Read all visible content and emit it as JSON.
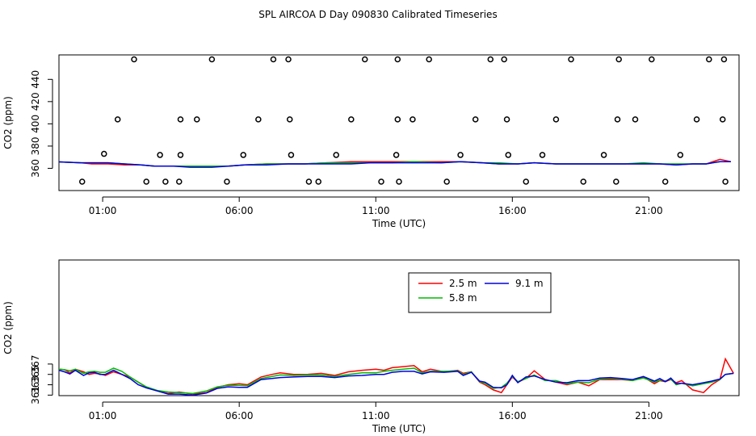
{
  "page": {
    "title": "SPL AIRCOA D  Day 090830  Calibrated Timeseries"
  },
  "chart_data": [
    {
      "type": "scatter",
      "xlabel": "Time (UTC)",
      "ylabel": "CO2 (ppm)",
      "xlim": [
        -0.6,
        24.3
      ],
      "ylim": [
        340,
        462
      ],
      "xticks": [
        1,
        6,
        11,
        16,
        21
      ],
      "xtick_labels": [
        "01:00",
        "06:00",
        "11:00",
        "16:00",
        "21:00"
      ],
      "yticks": [
        360,
        380,
        400,
        420,
        440
      ],
      "ytick_labels": [
        "360",
        "380",
        "400",
        "420",
        "440"
      ],
      "points": {
        "x": [
          0.25,
          1.05,
          1.55,
          2.15,
          2.6,
          3.1,
          3.3,
          3.8,
          3.85,
          3.85,
          4.45,
          5.0,
          5.55,
          6.15,
          6.7,
          7.25,
          7.8,
          7.85,
          7.9,
          8.55,
          8.9,
          9.55,
          10.1,
          10.6,
          11.2,
          11.75,
          11.8,
          11.8,
          11.85,
          12.35,
          12.95,
          13.6,
          14.1,
          14.65,
          15.2,
          15.7,
          15.8,
          15.85,
          16.5,
          17.1,
          17.6,
          18.15,
          18.6,
          19.35,
          19.8,
          19.85,
          19.9,
          20.5,
          21.1,
          21.6,
          22.15,
          22.75,
          23.2,
          23.7,
          23.75,
          23.8
        ],
        "y": [
          348,
          373,
          404,
          458,
          348,
          372,
          348,
          348,
          372,
          404,
          404,
          458,
          348,
          372,
          404,
          458,
          458,
          404,
          372,
          348,
          348,
          372,
          404,
          458,
          348,
          372,
          404,
          458,
          348,
          404,
          458,
          348,
          372,
          404,
          458,
          458,
          404,
          372,
          348,
          372,
          404,
          458,
          348,
          372,
          348,
          404,
          458,
          404,
          458,
          348,
          372,
          404,
          458,
          404,
          458,
          348
        ]
      },
      "series": [
        {
          "name": "2.5 m",
          "color": "#ff0000",
          "x": [
            -0.8,
            0.2,
            0.6,
            1.2,
            1.8,
            2.4,
            2.9,
            3.6,
            4.2,
            5.0,
            5.6,
            6.2,
            7.0,
            7.8,
            8.4,
            9.2,
            10.1,
            10.8,
            11.6,
            12.4,
            13.4,
            14.1,
            14.9,
            15.5,
            16.2,
            16.8,
            17.6,
            18.4,
            19.2,
            20.1,
            20.8,
            21.4,
            22.0,
            22.6,
            23.1,
            23.6,
            24.0
          ],
          "y": [
            366,
            365,
            364,
            364,
            363,
            363,
            362,
            362,
            362,
            362,
            362,
            363,
            364,
            364,
            364,
            365,
            366,
            366,
            366,
            366,
            366,
            366,
            365,
            364,
            364,
            365,
            364,
            364,
            364,
            364,
            364,
            364,
            363,
            364,
            364,
            368,
            366
          ]
        },
        {
          "name": "5.8 m",
          "color": "#00bb00",
          "x": [
            -0.8,
            0.2,
            0.6,
            1.2,
            1.8,
            2.4,
            2.9,
            3.6,
            4.2,
            5.0,
            5.6,
            6.2,
            7.0,
            7.8,
            8.4,
            9.2,
            10.1,
            10.8,
            11.6,
            12.4,
            13.4,
            14.1,
            14.9,
            15.5,
            16.2,
            16.8,
            17.6,
            18.4,
            19.2,
            20.1,
            20.8,
            21.4,
            22.0,
            22.6,
            23.1,
            23.6,
            24.0
          ],
          "y": [
            366,
            365,
            365,
            365,
            364,
            363,
            362,
            362,
            362,
            362,
            362,
            363,
            364,
            364,
            364,
            365,
            365,
            365,
            365,
            366,
            365,
            366,
            365,
            365,
            364,
            365,
            364,
            364,
            364,
            364,
            365,
            364,
            364,
            364,
            364,
            366,
            366
          ]
        },
        {
          "name": "9.1 m",
          "color": "#0000dd",
          "x": [
            -0.8,
            0.2,
            0.6,
            1.2,
            1.8,
            2.4,
            2.9,
            3.6,
            4.2,
            5.0,
            5.6,
            6.2,
            7.0,
            7.8,
            8.4,
            9.2,
            10.1,
            10.8,
            11.6,
            12.4,
            13.4,
            14.1,
            14.9,
            15.5,
            16.2,
            16.8,
            17.6,
            18.4,
            19.2,
            20.1,
            20.8,
            21.4,
            22.0,
            22.6,
            23.1,
            23.6,
            24.0
          ],
          "y": [
            366,
            365,
            365,
            365,
            364,
            363,
            362,
            362,
            361,
            361,
            362,
            363,
            363,
            364,
            364,
            364,
            364,
            365,
            365,
            365,
            365,
            366,
            365,
            364,
            364,
            365,
            364,
            364,
            364,
            364,
            364,
            364,
            363,
            364,
            364,
            366,
            366
          ]
        }
      ]
    },
    {
      "type": "line",
      "xlabel": "Time (UTC)",
      "ylabel": "CO2 (ppm)",
      "xlim": [
        -0.6,
        24.3
      ],
      "ylim": [
        360.9,
        387.1
      ],
      "xticks": [
        1,
        6,
        11,
        16,
        21
      ],
      "xtick_labels": [
        "01:00",
        "06:00",
        "11:00",
        "16:00",
        "21:00"
      ],
      "yticks": [
        361,
        363,
        365,
        367
      ],
      "ytick_labels": [
        "361",
        "363",
        "365",
        "367"
      ],
      "legend": {
        "position": "top-center",
        "entries": [
          "2.5 m",
          "5.8 m",
          "9.1 m"
        ]
      },
      "series": [
        {
          "name": "2.5 m",
          "color": "#ff0000",
          "x": [
            -0.9,
            -0.7,
            -0.6,
            -0.4,
            -0.2,
            0.0,
            0.3,
            0.5,
            0.7,
            0.9,
            1.1,
            1.4,
            1.7,
            2.0,
            2.3,
            2.6,
            3.0,
            3.4,
            3.8,
            4.3,
            4.8,
            5.2,
            5.6,
            6.0,
            6.3,
            6.8,
            7.2,
            7.5,
            8.0,
            8.5,
            9.0,
            9.5,
            10.0,
            10.5,
            11.0,
            11.3,
            11.6,
            12.0,
            12.4,
            12.7,
            13.0,
            13.5,
            14.0,
            14.2,
            14.5,
            14.8,
            15.0,
            15.3,
            15.6,
            15.8,
            16.0,
            16.2,
            16.5,
            16.8,
            17.2,
            17.6,
            18.0,
            18.4,
            18.8,
            19.2,
            19.6,
            20.0,
            20.4,
            20.8,
            21.2,
            21.4,
            21.6,
            21.8,
            22.0,
            22.2,
            22.6,
            23.0,
            23.3,
            23.6,
            23.8,
            24.1
          ],
          "y": [
            366.2,
            366.8,
            366.0,
            365.9,
            365.3,
            366.0,
            365.5,
            365.0,
            365.2,
            365.1,
            364.8,
            365.5,
            365.0,
            364.5,
            363.5,
            362.5,
            361.8,
            361.3,
            361.6,
            361.2,
            361.5,
            362.5,
            363.0,
            363.2,
            363.0,
            364.5,
            365.0,
            365.3,
            365.0,
            365.0,
            365.2,
            364.8,
            365.5,
            365.8,
            366.0,
            365.8,
            366.3,
            366.5,
            366.7,
            365.5,
            366.0,
            365.5,
            365.8,
            365.2,
            365.5,
            363.5,
            363.0,
            362.0,
            361.5,
            363.0,
            364.5,
            363.5,
            364.2,
            365.7,
            364.0,
            363.5,
            363.0,
            363.5,
            362.8,
            364.0,
            364.0,
            364.0,
            363.8,
            364.5,
            363.2,
            363.8,
            363.6,
            364.0,
            363.4,
            363.8,
            362.0,
            361.5,
            363.0,
            364.0,
            368.0,
            365.2
          ]
        },
        {
          "name": "5.8 m",
          "color": "#00bb00",
          "x": [
            -0.9,
            -0.7,
            -0.6,
            -0.4,
            -0.2,
            0.0,
            0.3,
            0.5,
            0.7,
            0.9,
            1.1,
            1.4,
            1.7,
            2.0,
            2.3,
            2.6,
            3.0,
            3.4,
            3.8,
            4.3,
            4.8,
            5.2,
            5.6,
            6.0,
            6.3,
            6.8,
            7.2,
            7.5,
            8.0,
            8.5,
            9.0,
            9.5,
            10.0,
            10.5,
            11.0,
            11.3,
            11.6,
            12.0,
            12.4,
            12.7,
            13.0,
            13.5,
            14.0,
            14.2,
            14.5,
            14.8,
            15.0,
            15.3,
            15.6,
            15.8,
            16.0,
            16.2,
            16.5,
            16.8,
            17.2,
            17.6,
            18.0,
            18.4,
            18.8,
            19.2,
            19.6,
            20.0,
            20.4,
            20.8,
            21.2,
            21.4,
            21.6,
            21.8,
            22.0,
            22.2,
            22.6,
            23.0,
            23.3,
            23.6,
            23.8,
            24.1
          ],
          "y": [
            366.3,
            366.6,
            366.0,
            365.9,
            365.7,
            366.0,
            365.2,
            365.5,
            365.6,
            365.4,
            365.4,
            366.2,
            365.6,
            364.5,
            363.5,
            362.6,
            361.9,
            361.6,
            361.5,
            361.3,
            361.8,
            362.6,
            362.9,
            362.9,
            362.8,
            364.2,
            364.6,
            364.9,
            364.8,
            364.9,
            364.9,
            364.6,
            365.0,
            365.3,
            365.3,
            365.6,
            365.8,
            366.0,
            366.2,
            365.3,
            365.6,
            365.6,
            365.7,
            365.0,
            365.5,
            363.6,
            363.3,
            362.3,
            362.5,
            363.3,
            364.6,
            363.6,
            364.2,
            364.9,
            363.8,
            363.8,
            363.2,
            363.5,
            363.4,
            364.1,
            364.2,
            364.1,
            363.8,
            364.3,
            363.5,
            363.9,
            363.7,
            364.1,
            363.0,
            363.3,
            362.8,
            363.2,
            363.5,
            364.0,
            365.0,
            365.2
          ]
        },
        {
          "name": "9.1 m",
          "color": "#0000dd",
          "x": [
            -0.9,
            -0.7,
            -0.6,
            -0.4,
            -0.2,
            0.0,
            0.3,
            0.5,
            0.7,
            0.9,
            1.1,
            1.4,
            1.7,
            2.0,
            2.3,
            2.6,
            3.0,
            3.4,
            3.8,
            4.3,
            4.8,
            5.2,
            5.6,
            6.0,
            6.3,
            6.8,
            7.2,
            7.5,
            8.0,
            8.5,
            9.0,
            9.5,
            10.0,
            10.5,
            11.0,
            11.3,
            11.6,
            12.0,
            12.4,
            12.7,
            13.0,
            13.5,
            14.0,
            14.2,
            14.5,
            14.8,
            15.0,
            15.3,
            15.6,
            15.8,
            16.0,
            16.2,
            16.5,
            16.8,
            17.2,
            17.6,
            18.0,
            18.4,
            18.8,
            19.2,
            19.6,
            20.0,
            20.4,
            20.8,
            21.2,
            21.4,
            21.6,
            21.8,
            22.0,
            22.2,
            22.6,
            23.0,
            23.3,
            23.6,
            23.8,
            24.1
          ],
          "y": [
            366.4,
            366.2,
            365.8,
            365.5,
            365.1,
            365.8,
            364.8,
            365.3,
            365.4,
            365.0,
            365.0,
            365.8,
            365.0,
            364.2,
            363.0,
            362.4,
            361.8,
            361.2,
            361.2,
            361.0,
            361.4,
            362.3,
            362.6,
            362.5,
            362.5,
            364.0,
            364.2,
            364.4,
            364.5,
            364.6,
            364.6,
            364.4,
            364.7,
            364.8,
            365.0,
            365.0,
            365.4,
            365.6,
            365.6,
            365.1,
            365.5,
            365.4,
            365.6,
            364.8,
            365.4,
            363.7,
            363.5,
            362.5,
            362.4,
            363.0,
            364.8,
            363.4,
            364.5,
            364.7,
            364.0,
            363.5,
            363.4,
            363.8,
            363.8,
            364.3,
            364.4,
            364.2,
            364.0,
            364.6,
            363.7,
            364.2,
            363.6,
            364.3,
            363.2,
            363.3,
            363.0,
            363.4,
            363.7,
            364.1,
            365.0,
            365.2
          ]
        }
      ]
    }
  ]
}
